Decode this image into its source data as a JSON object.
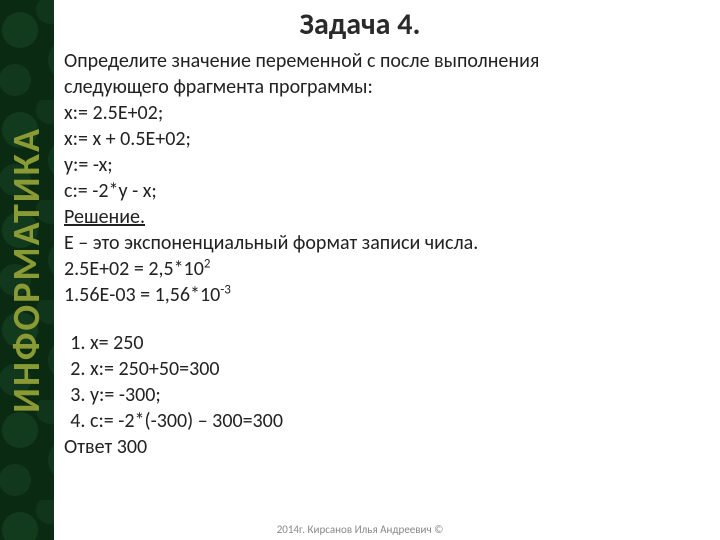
{
  "title": "Задача 4.",
  "sidebar": {
    "label": "ИНФОРМАТИКА",
    "textColor": "#8a9a35",
    "bgDark": "#0a2a12",
    "bgLight": "#1a4a28"
  },
  "body": {
    "intro1": "Определите значение переменной с после выполнения",
    "intro2": "следующего фрагмента программы:",
    "code1": "x:= 2.5E+02;",
    "code2": "x:= x + 0.5E+02;",
    "code3": "y:= -x;",
    "code4": "c:= -2*y - x;",
    "solutionHead": "Решение.",
    "sol1": "Е – это экспоненциальный формат записи числа.",
    "sol2a": "2.5Е+02 = 2,5*10",
    "sol2exp": "2",
    "sol3a": "1.56Е-03 = 1,56*10",
    "sol3exp": "-3"
  },
  "steps": [
    "x= 250",
    "x:= 250+50=300",
    "y:= -300;",
    "c:= -2*(-300) – 300=300"
  ],
  "answer": "Ответ 300",
  "footer": "2014г. Кирсанов Илья Андреевич ©",
  "style": {
    "pageWidth": 720,
    "pageHeight": 540,
    "titleFontSize": 30,
    "titleWeight": "bold",
    "titleColor": "#2a2a2a",
    "bodyFontSize": 20,
    "bodyColor": "#222222",
    "lineHeight": 1.3,
    "footerFontSize": 11,
    "footerColor": "#888888",
    "sidebarWidth": 54,
    "sidebarFontSize": 38
  }
}
